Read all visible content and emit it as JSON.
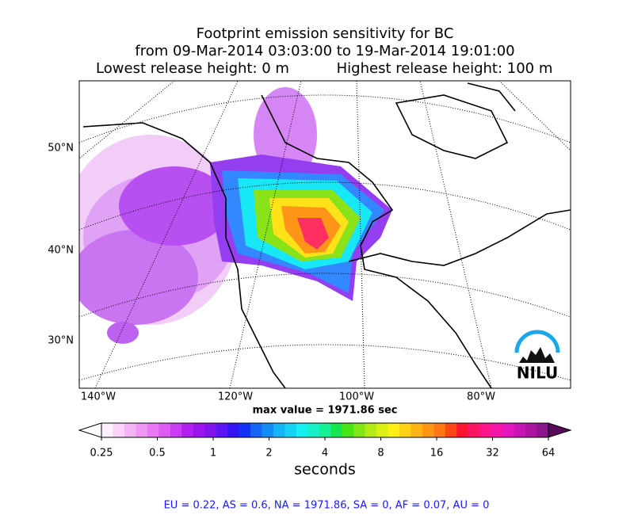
{
  "title": {
    "line1": "Footprint emission sensitivity for BC",
    "line2": "from 09-Mar-2014 03:03:00 to 19-Mar-2014 19:01:00",
    "lowest": "Lowest release height: 0 m",
    "highest": "Highest release height: 100 m"
  },
  "map": {
    "lat_labels": [
      "50°N",
      "40°N",
      "30°N"
    ],
    "lon_labels": [
      "140°W",
      "120°W",
      "100°W",
      "80°W"
    ],
    "logo": "NILU"
  },
  "max_value_text": "max value = 1971.86 sec",
  "colorbar": {
    "range": [
      0.25,
      64
    ],
    "ticks": [
      0.25,
      0.5,
      1,
      2,
      4,
      8,
      16,
      32,
      64
    ],
    "label": "seconds",
    "log": true
  },
  "footer": "EU = 0.22,  AS = 0.6,  NA = 1971.86,  SA = 0,  AF = 0.07,  AU = 0"
}
